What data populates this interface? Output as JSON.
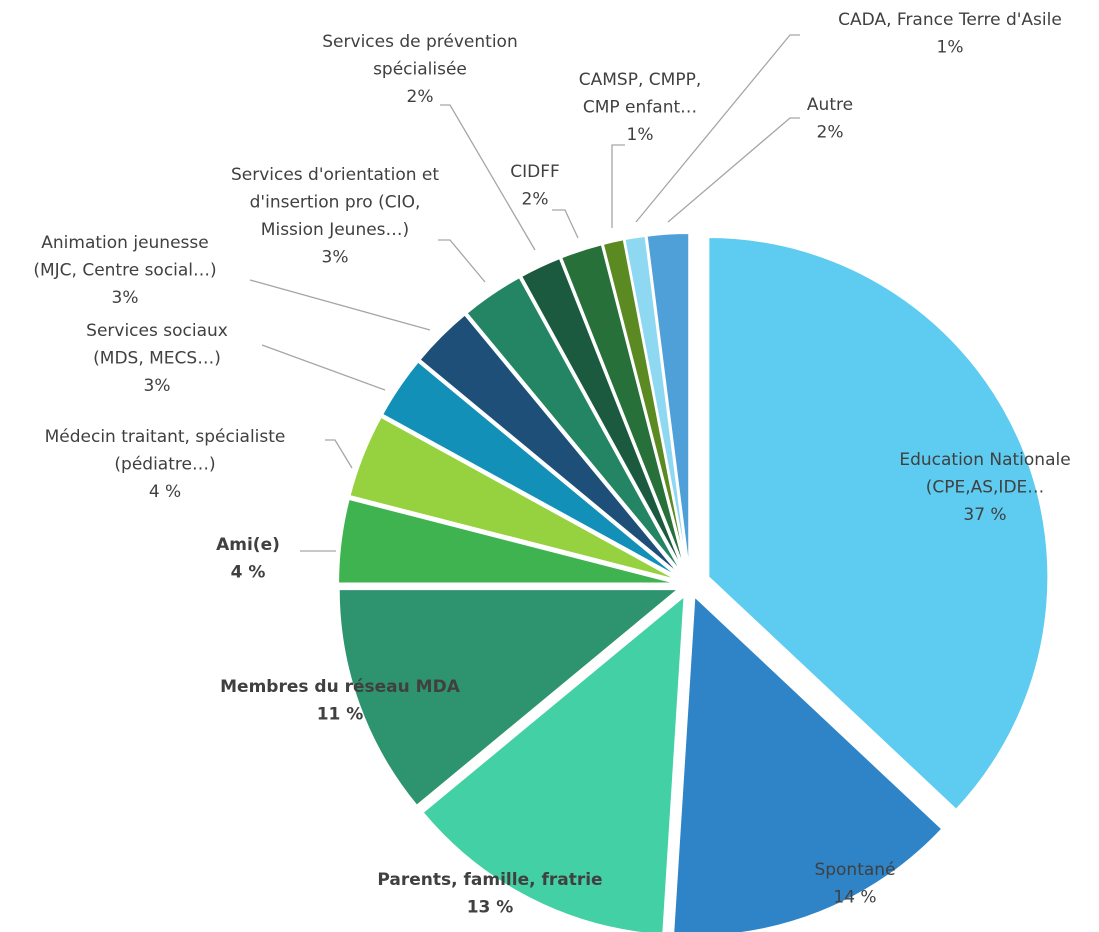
{
  "chart_data": {
    "type": "pie",
    "categories": [
      "Education Nationale\n(CPE,AS,IDE…",
      "Spontané",
      "Parents, famille, fratrie",
      "Membres du réseau MDA",
      "Ami(e)",
      "Médecin traitant, spécialiste\n(pédiatre…)",
      "Services sociaux\n(MDS, MECS…)",
      "Animation jeunesse\n(MJC, Centre social…)",
      "Services d'orientation et\nd'insertion pro (CIO,\nMission Jeunes…)",
      "Services de prévention\nspécialisée",
      "CIDFF",
      "CAMSP, CMPP,\nCMP enfant…",
      "CADA, France Terre d'Asile",
      "Autre"
    ],
    "values": [
      37,
      14,
      13,
      11,
      4,
      4,
      3,
      3,
      3,
      2,
      2,
      1,
      1,
      2
    ],
    "value_labels": [
      "37 %",
      "14 %",
      "13 %",
      "11 %",
      "4 %",
      "4 %",
      "3%",
      "3%",
      "3%",
      "2%",
      "2%",
      "1%",
      "1%",
      "2%"
    ],
    "colors": [
      "#5ecbf0",
      "#2e84c6",
      "#43d0a4",
      "#2e9470",
      "#3fb34f",
      "#96d13f",
      "#1390b8",
      "#1d4f78",
      "#248564",
      "#1c5a40",
      "#28703a",
      "#5c8a22",
      "#8ed8f2",
      "#4fa0d8"
    ],
    "label_bold": [
      false,
      false,
      true,
      true,
      true,
      false,
      false,
      false,
      false,
      false,
      false,
      false,
      false,
      false
    ]
  }
}
